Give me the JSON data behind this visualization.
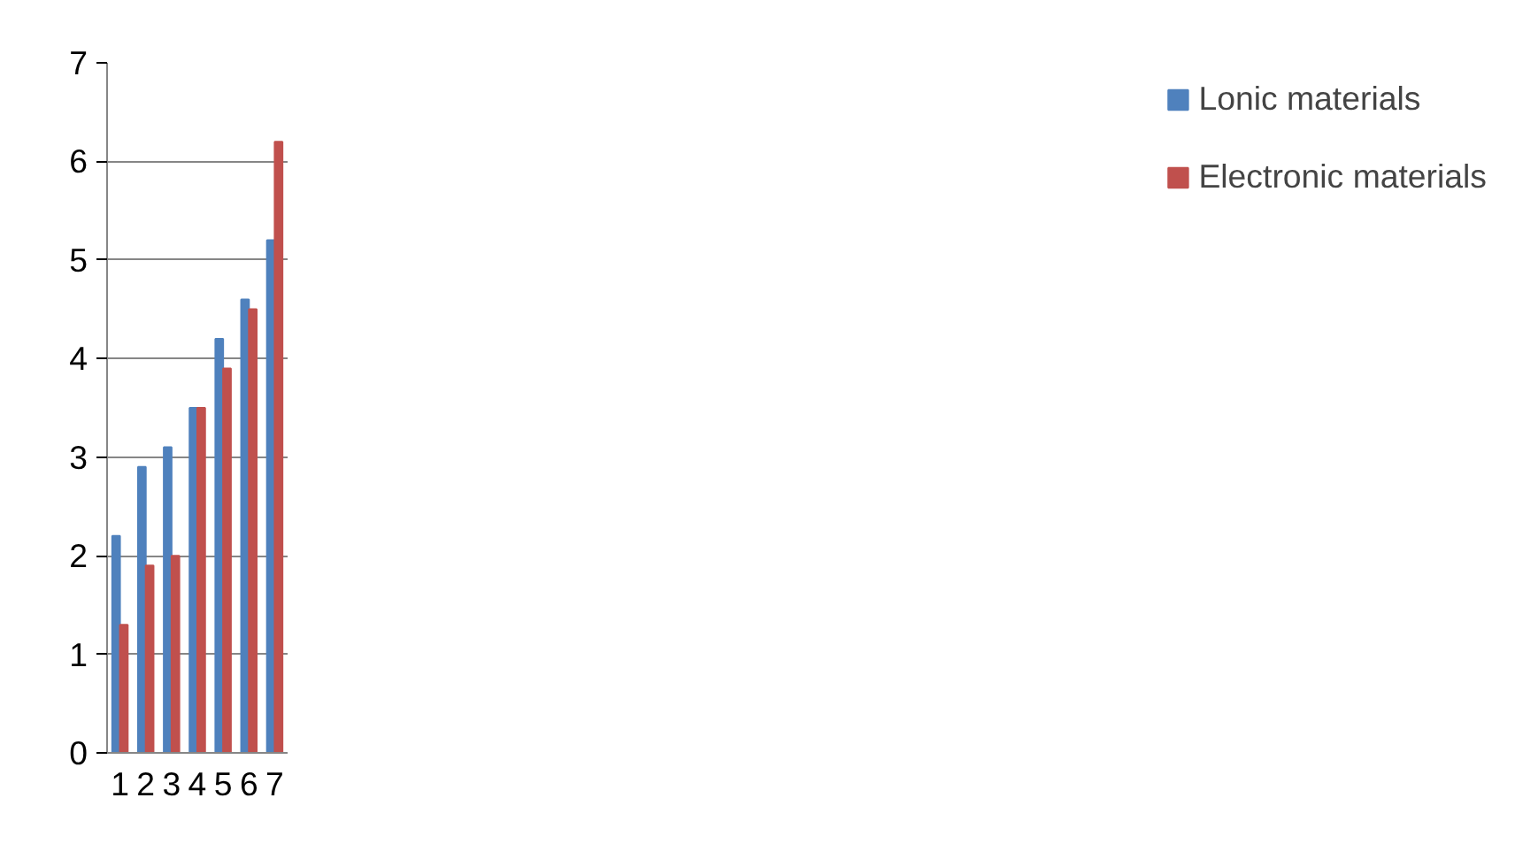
{
  "chart_data": {
    "type": "bar",
    "categories": [
      "1",
      "2",
      "3",
      "4",
      "5",
      "6",
      "7"
    ],
    "series": [
      {
        "name": "Lonic materials",
        "color": "#4f81bd",
        "values": [
          2.2,
          2.9,
          3.1,
          3.5,
          4.2,
          4.6,
          5.2
        ]
      },
      {
        "name": "Electronic materials",
        "color": "#c0504d",
        "values": [
          1.3,
          1.9,
          2.0,
          3.5,
          3.9,
          4.5,
          6.2
        ]
      }
    ],
    "ylim": [
      0,
      7
    ],
    "yticks": [
      0,
      1,
      2,
      3,
      4,
      5,
      6,
      7
    ],
    "grid": "y",
    "legend": "right"
  }
}
